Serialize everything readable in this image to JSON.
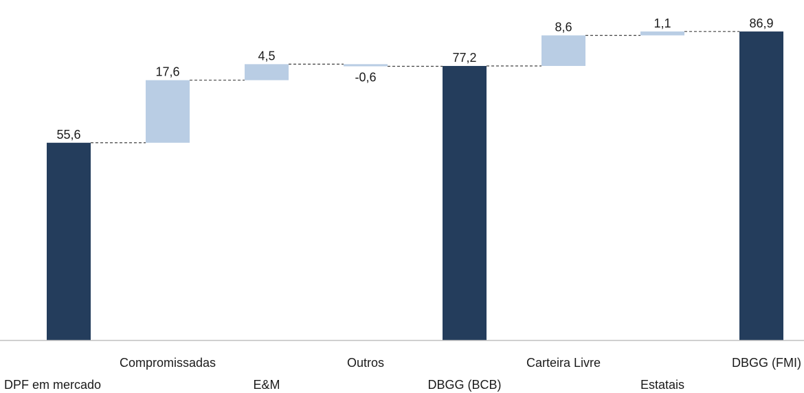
{
  "chart_data": {
    "type": "bar",
    "subtype": "waterfall",
    "title": "",
    "xlabel": "",
    "ylabel": "",
    "grid": false,
    "legend": "none",
    "categories": [
      "DPF em mercado",
      "Compromissadas",
      "E&M",
      "Outros",
      "DBGG (BCB)",
      "Carteira Livre",
      "Estatais",
      "DBGG (FMI)"
    ],
    "values": [
      55.6,
      17.6,
      4.5,
      -0.6,
      77.2,
      8.6,
      1.1,
      86.9
    ],
    "labels": [
      "55,6",
      "17,6",
      "4,5",
      "-0,6",
      "77,2",
      "8,6",
      "1,1",
      "86,9"
    ],
    "bar_kind": [
      "total",
      "delta",
      "delta",
      "delta",
      "total",
      "delta",
      "delta",
      "total"
    ],
    "ylim": [
      0,
      90
    ],
    "colors": {
      "total": "#243d5c",
      "delta": "#b9cde4",
      "connector": "#404040",
      "axis": "#bfbfbf"
    }
  }
}
